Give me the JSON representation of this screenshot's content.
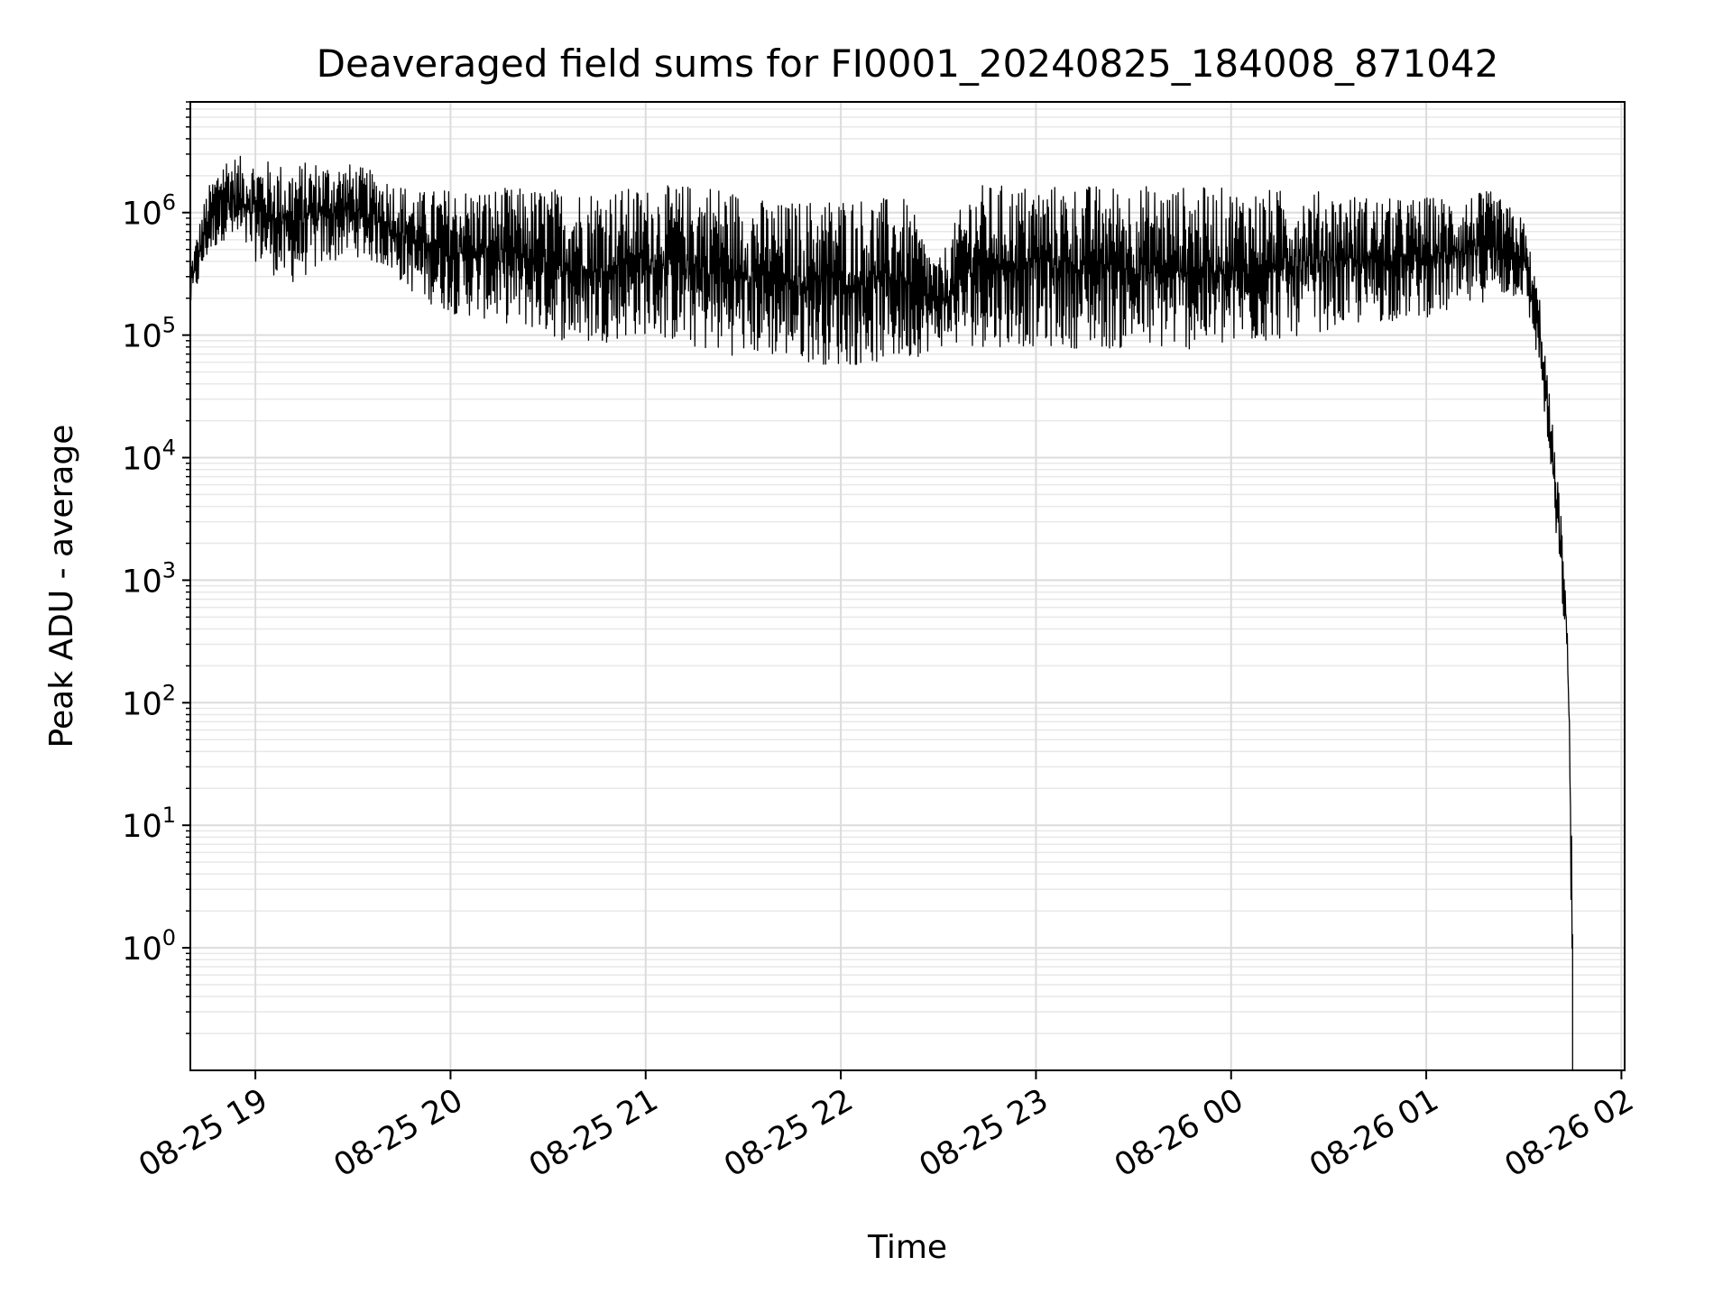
{
  "chart_data": {
    "type": "line",
    "title": "Deaveraged field sums for FI0001_20240825_184008_871042",
    "xlabel": "Time",
    "ylabel": "Peak ADU - average",
    "yscale": "log",
    "grid": "both (major and minor), light gray",
    "line_color": "#000000",
    "xlim": [
      "2024-08-25 18:40",
      "2024-08-26 02:01"
    ],
    "ylim": [
      0.1,
      8000000
    ],
    "x_ticks": [
      {
        "t": "2024-08-25 19:00",
        "label": "08-25 19"
      },
      {
        "t": "2024-08-25 20:00",
        "label": "08-25 20"
      },
      {
        "t": "2024-08-25 21:00",
        "label": "08-25 21"
      },
      {
        "t": "2024-08-25 22:00",
        "label": "08-25 22"
      },
      {
        "t": "2024-08-25 23:00",
        "label": "08-25 23"
      },
      {
        "t": "2024-08-26 00:00",
        "label": "08-26 00"
      },
      {
        "t": "2024-08-26 01:00",
        "label": "08-26 01"
      },
      {
        "t": "2024-08-26 02:00",
        "label": "08-26 02"
      }
    ],
    "y_ticks": [
      {
        "value": 1,
        "base": "10",
        "exp": "0"
      },
      {
        "value": 10,
        "base": "10",
        "exp": "1"
      },
      {
        "value": 100,
        "base": "10",
        "exp": "2"
      },
      {
        "value": 1000,
        "base": "10",
        "exp": "3"
      },
      {
        "value": 10000,
        "base": "10",
        "exp": "4"
      },
      {
        "value": 100000,
        "base": "10",
        "exp": "5"
      },
      {
        "value": 1000000,
        "base": "10",
        "exp": "6"
      }
    ],
    "envelope": {
      "columns": [
        "time",
        "upper",
        "lower"
      ],
      "points": [
        [
          "2024-08-25 18:40",
          400000,
          160000
        ],
        [
          "2024-08-25 18:45",
          1500000,
          400000
        ],
        [
          "2024-08-25 18:50",
          3000000,
          600000
        ],
        [
          "2024-08-25 19:00",
          2800000,
          400000
        ],
        [
          "2024-08-25 19:10",
          2500000,
          250000
        ],
        [
          "2024-08-25 19:20",
          2700000,
          350000
        ],
        [
          "2024-08-25 19:30",
          2500000,
          450000
        ],
        [
          "2024-08-25 19:40",
          2000000,
          350000
        ],
        [
          "2024-08-25 19:50",
          1500000,
          200000
        ],
        [
          "2024-08-25 20:00",
          1600000,
          150000
        ],
        [
          "2024-08-25 20:20",
          1600000,
          120000
        ],
        [
          "2024-08-25 20:40",
          1600000,
          80000
        ],
        [
          "2024-08-25 21:00",
          1600000,
          100000
        ],
        [
          "2024-08-25 21:20",
          1800000,
          70000
        ],
        [
          "2024-08-25 21:40",
          1200000,
          65000
        ],
        [
          "2024-08-25 22:00",
          1400000,
          55000
        ],
        [
          "2024-08-25 22:20",
          1300000,
          60000
        ],
        [
          "2024-08-25 22:30",
          400000,
          80000
        ],
        [
          "2024-08-25 22:40",
          1700000,
          80000
        ],
        [
          "2024-08-25 23:00",
          1700000,
          80000
        ],
        [
          "2024-08-25 23:30",
          1700000,
          75000
        ],
        [
          "2024-08-26 00:00",
          1600000,
          75000
        ],
        [
          "2024-08-26 00:30",
          1500000,
          110000
        ],
        [
          "2024-08-26 00:50",
          1300000,
          130000
        ],
        [
          "2024-08-26 01:10",
          1400000,
          150000
        ],
        [
          "2024-08-26 01:20",
          1500000,
          200000
        ],
        [
          "2024-08-26 01:30",
          900000,
          200000
        ],
        [
          "2024-08-26 01:35",
          200000,
          50000
        ],
        [
          "2024-08-26 01:38",
          30000,
          8000
        ],
        [
          "2024-08-26 01:41",
          5000,
          1000
        ],
        [
          "2024-08-26 01:43",
          800,
          300
        ],
        [
          "2024-08-26 01:44",
          100,
          50
        ],
        [
          "2024-08-26 01:45",
          5,
          0.1
        ]
      ]
    }
  }
}
